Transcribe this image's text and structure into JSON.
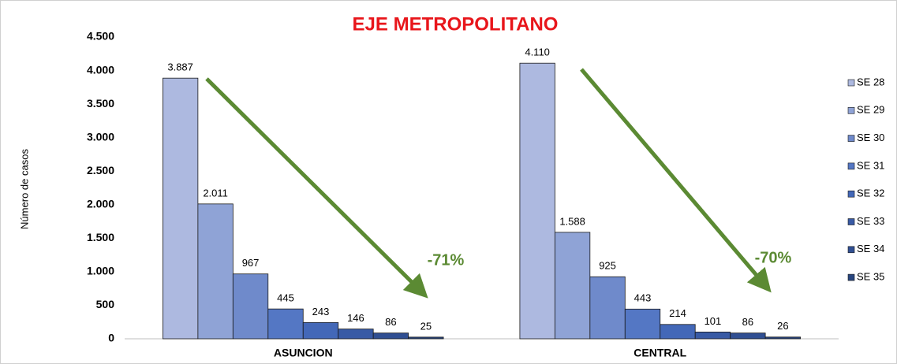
{
  "chart_data": {
    "type": "bar",
    "title": "EJE METROPOLITANO",
    "y_label": "Número de casos",
    "categories": [
      "ASUNCION",
      "CENTRAL"
    ],
    "series": [
      {
        "name": "SE 28",
        "color": "#adb9e0",
        "values": [
          3887,
          4110
        ],
        "value_labels": [
          "3.887",
          "4.110"
        ]
      },
      {
        "name": "SE 29",
        "color": "#8fa3d6",
        "values": [
          2011,
          1588
        ],
        "value_labels": [
          "2.011",
          "1.588"
        ]
      },
      {
        "name": "SE 30",
        "color": "#6f8acb",
        "values": [
          967,
          925
        ]
      },
      {
        "name": "SE 31",
        "color": "#5477c4",
        "values": [
          445,
          443
        ]
      },
      {
        "name": "SE 32",
        "color": "#4368b8",
        "values": [
          243,
          214
        ]
      },
      {
        "name": "SE 33",
        "color": "#385aa5",
        "values": [
          146,
          101
        ]
      },
      {
        "name": "SE 34",
        "color": "#304f92",
        "values": [
          86,
          86
        ]
      },
      {
        "name": "SE 35",
        "color": "#28457f",
        "values": [
          25,
          26
        ]
      }
    ],
    "annotations": [
      "-71%",
      "-70%"
    ],
    "ylim": [
      0,
      4500
    ],
    "yticks": [
      0,
      500,
      {
        "value": 1000,
        "label": "1.000"
      },
      {
        "value": 1500,
        "label": "1.500"
      },
      {
        "value": 2000,
        "label": "2.000"
      },
      {
        "value": 2500,
        "label": "2.500"
      },
      {
        "value": 3000,
        "label": "3.000"
      },
      {
        "value": 3500,
        "label": "3.500"
      },
      {
        "value": 4000,
        "label": "4.000"
      },
      {
        "value": 4500,
        "label": "4.500"
      }
    ],
    "legend": "right"
  }
}
